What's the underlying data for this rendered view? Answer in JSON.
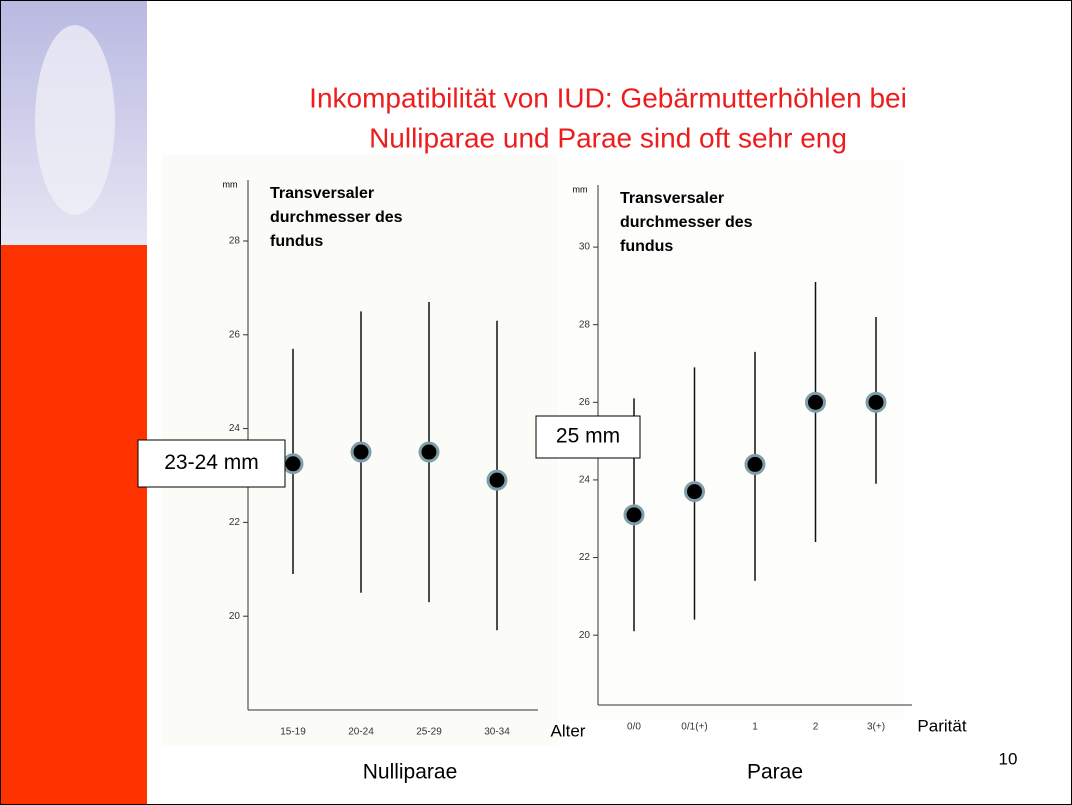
{
  "slide": {
    "title": [
      "Inkompatibilität von IUD: Gebärmutterhöhlen bei",
      "Nulliparae und Parae sind oft sehr eng"
    ],
    "page_number": "10"
  },
  "chart_data": [
    {
      "type": "errorbar",
      "caption": "Nulliparae",
      "annotation": [
        "Transversaler",
        "durchmesser des",
        "fundus"
      ],
      "box_label": "23-24 mm",
      "y_unit": "mm",
      "x_label": "Alter",
      "categories": [
        "15-19",
        "20-24",
        "25-29",
        "30-34"
      ],
      "values": [
        23.25,
        23.5,
        23.5,
        22.9
      ],
      "low": [
        20.9,
        20.5,
        20.3,
        19.7
      ],
      "high": [
        25.7,
        26.5,
        26.7,
        26.3
      ],
      "ylim": [
        18,
        29.3
      ],
      "yticks": [
        20,
        22,
        24,
        26,
        28
      ]
    },
    {
      "type": "errorbar",
      "caption": "Parae",
      "annotation": [
        "Transversaler",
        "durchmesser des",
        "fundus"
      ],
      "box_label": "25 mm",
      "y_unit": "mm",
      "x_label": "Parität",
      "categories": [
        "0/0",
        "0/1(+)",
        "1",
        "2",
        "3(+)"
      ],
      "values": [
        23.1,
        23.7,
        24.4,
        26,
        26
      ],
      "low": [
        20.1,
        20.4,
        21.4,
        22.4,
        23.9
      ],
      "high": [
        26.1,
        26.9,
        27.3,
        29.1,
        28.2
      ],
      "ylim": [
        18.2,
        31.6
      ],
      "yticks": [
        20,
        22,
        24,
        26,
        28,
        30
      ]
    }
  ]
}
